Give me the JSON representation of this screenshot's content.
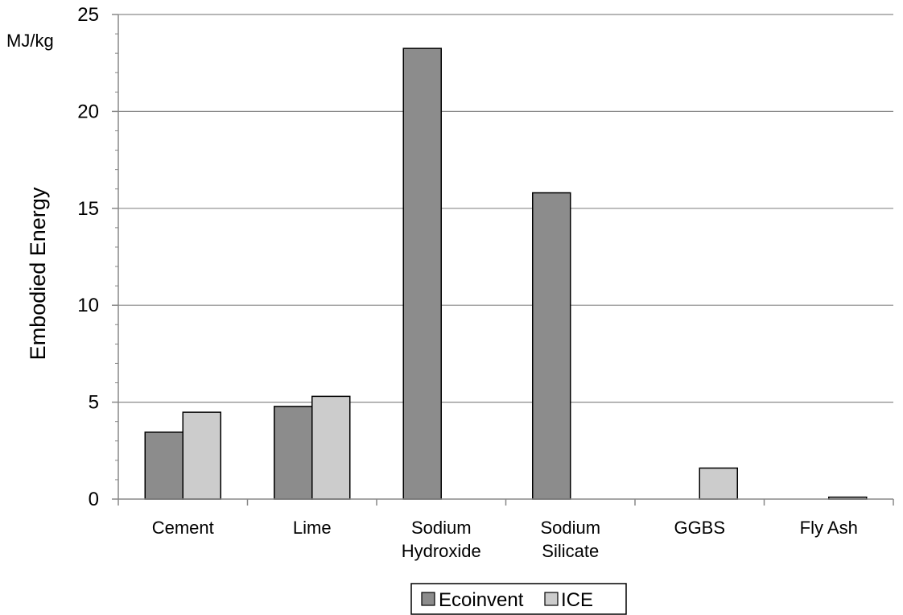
{
  "chart_data": {
    "type": "bar",
    "ylabel": "Embodied Energy",
    "unit_label": "MJ/kg",
    "ylim": [
      0,
      25
    ],
    "yticks": [
      0,
      5,
      10,
      15,
      20,
      25
    ],
    "minor_ticks_per_major": 5,
    "grid": "horizontal major",
    "legend_position": "bottom-center",
    "categories": [
      [
        "Cement"
      ],
      [
        "Lime"
      ],
      [
        "Sodium",
        "Hydroxide"
      ],
      [
        "Sodium",
        "Silicate"
      ],
      [
        "GGBS"
      ],
      [
        "Fly Ash"
      ]
    ],
    "series": [
      {
        "name": "Ecoinvent",
        "color": "#8c8c8c",
        "values": [
          3.45,
          4.78,
          23.25,
          15.8,
          null,
          null
        ]
      },
      {
        "name": "ICE",
        "color": "#cccccc",
        "values": [
          4.48,
          5.3,
          null,
          null,
          1.6,
          0.1
        ]
      }
    ]
  }
}
